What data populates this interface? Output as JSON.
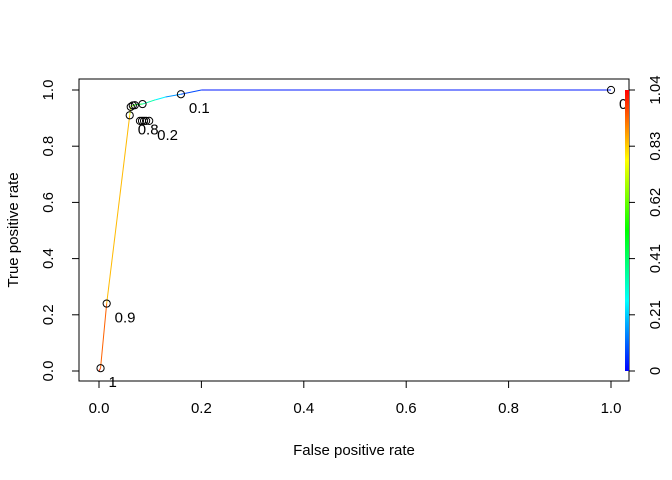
{
  "chart_data": {
    "type": "line",
    "subtype": "roc-curve",
    "xlabel": "False positive rate",
    "ylabel": "True positive rate",
    "xlim": [
      0,
      1
    ],
    "ylim": [
      0,
      1
    ],
    "x_ticks": [
      "0.0",
      "0.2",
      "0.4",
      "0.6",
      "0.8",
      "1.0"
    ],
    "y_ticks": [
      "0.0",
      "0.2",
      "0.4",
      "0.6",
      "0.8",
      "1.0"
    ],
    "grid": false,
    "curve": [
      {
        "fpr": 0.0,
        "tpr": 0.0,
        "cutoff": 1.0
      },
      {
        "fpr": 0.003,
        "tpr": 0.01,
        "cutoff": 0.98
      },
      {
        "fpr": 0.015,
        "tpr": 0.24,
        "cutoff": 0.9
      },
      {
        "fpr": 0.06,
        "tpr": 0.91,
        "cutoff": 0.8
      },
      {
        "fpr": 0.062,
        "tpr": 0.94,
        "cutoff": 0.7
      },
      {
        "fpr": 0.066,
        "tpr": 0.945,
        "cutoff": 0.6
      },
      {
        "fpr": 0.072,
        "tpr": 0.948,
        "cutoff": 0.5
      },
      {
        "fpr": 0.085,
        "tpr": 0.95,
        "cutoff": 0.4
      },
      {
        "fpr": 0.11,
        "tpr": 0.965,
        "cutoff": 0.3
      },
      {
        "fpr": 0.13,
        "tpr": 0.975,
        "cutoff": 0.2
      },
      {
        "fpr": 0.16,
        "tpr": 0.985,
        "cutoff": 0.1
      },
      {
        "fpr": 0.2,
        "tpr": 1.0,
        "cutoff": 0.05
      },
      {
        "fpr": 1.0,
        "tpr": 1.0,
        "cutoff": 0.0
      }
    ],
    "points": [
      {
        "fpr": 0.003,
        "tpr": 0.01
      },
      {
        "fpr": 0.015,
        "tpr": 0.24
      },
      {
        "fpr": 0.06,
        "tpr": 0.91
      },
      {
        "fpr": 0.062,
        "tpr": 0.94
      },
      {
        "fpr": 0.066,
        "tpr": 0.945
      },
      {
        "fpr": 0.07,
        "tpr": 0.946
      },
      {
        "fpr": 0.085,
        "tpr": 0.95
      },
      {
        "fpr": 0.08,
        "tpr": 0.89
      },
      {
        "fpr": 0.084,
        "tpr": 0.89
      },
      {
        "fpr": 0.088,
        "tpr": 0.89
      },
      {
        "fpr": 0.092,
        "tpr": 0.89
      },
      {
        "fpr": 0.098,
        "tpr": 0.89
      },
      {
        "fpr": 0.16,
        "tpr": 0.985
      },
      {
        "fpr": 1.0,
        "tpr": 1.0
      }
    ],
    "cutoff_labels": [
      {
        "text": "1",
        "fpr": 0.003,
        "tpr": 0.01
      },
      {
        "text": "0.9",
        "fpr": 0.015,
        "tpr": 0.24
      },
      {
        "text": "0.8",
        "fpr": 0.06,
        "tpr": 0.91
      },
      {
        "text": "0.2",
        "fpr": 0.098,
        "tpr": 0.89
      },
      {
        "text": "0.1",
        "fpr": 0.16,
        "tpr": 0.985
      },
      {
        "text": "0",
        "fpr": 1.0,
        "tpr": 1.0
      }
    ],
    "colorbar": {
      "range": [
        0,
        1.04
      ],
      "ticks": [
        "0",
        "0.21",
        "0.41",
        "0.62",
        "0.83",
        "1.04"
      ],
      "colors": [
        "#0000ff",
        "#00ffff",
        "#00ff00",
        "#ffff00",
        "#ff0000"
      ]
    }
  }
}
